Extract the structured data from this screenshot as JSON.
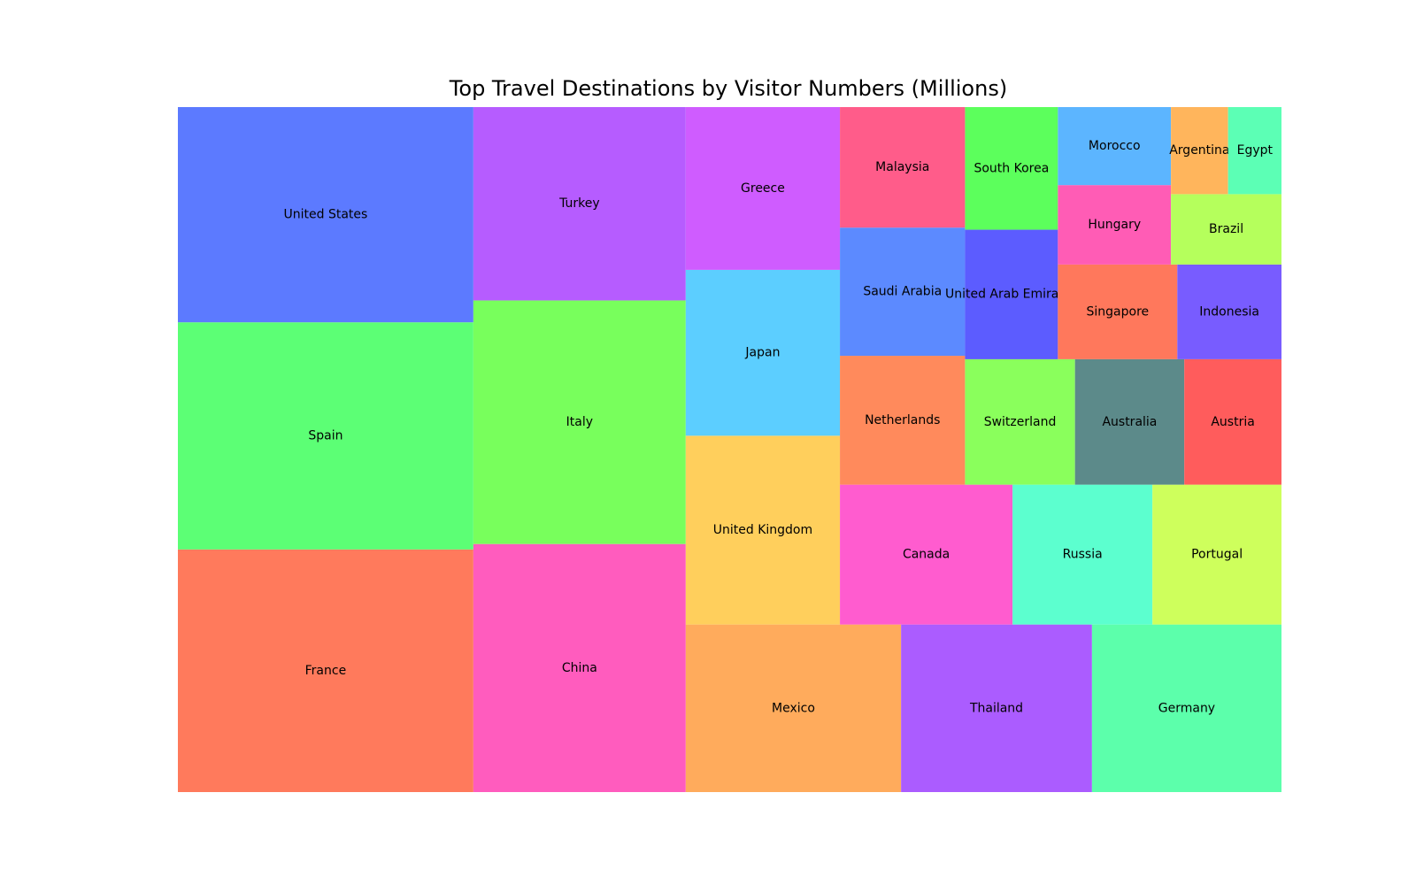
{
  "chart_data": {
    "type": "treemap",
    "title": "Top Travel Destinations by Visitor Numbers (Millions)",
    "xlabel": "",
    "ylabel": "",
    "grid": false,
    "legend": "none",
    "items": [
      {
        "label": "France",
        "value": 89.4,
        "color": "#ff7a5c"
      },
      {
        "label": "Spain",
        "value": 83.7,
        "color": "#5cff75"
      },
      {
        "label": "United States",
        "value": 79.3,
        "color": "#5c7aff"
      },
      {
        "label": "China",
        "value": 65.7,
        "color": "#ff5cbe"
      },
      {
        "label": "Italy",
        "value": 64.5,
        "color": "#78ff5c"
      },
      {
        "label": "Turkey",
        "value": 51.2,
        "color": "#b65cff"
      },
      {
        "label": "Mexico",
        "value": 45.0,
        "color": "#ffab5c"
      },
      {
        "label": "Thailand",
        "value": 39.9,
        "color": "#ab5cff"
      },
      {
        "label": "Germany",
        "value": 39.6,
        "color": "#5cffab"
      },
      {
        "label": "United Kingdom",
        "value": 36.3,
        "color": "#ffcf5c"
      },
      {
        "label": "Japan",
        "value": 31.9,
        "color": "#5cceff"
      },
      {
        "label": "Greece",
        "value": 31.3,
        "color": "#cf5cff"
      },
      {
        "label": "Canada",
        "value": 30.1,
        "color": "#ff5ccf"
      },
      {
        "label": "Russia",
        "value": 24.4,
        "color": "#5cffcf"
      },
      {
        "label": "Portugal",
        "value": 22.5,
        "color": "#ceff5c"
      },
      {
        "label": "Netherlands",
        "value": 20.1,
        "color": "#ff8a5c"
      },
      {
        "label": "Saudi Arabia",
        "value": 20.0,
        "color": "#5c8aff"
      },
      {
        "label": "Malaysia",
        "value": 18.8,
        "color": "#ff5c8a"
      },
      {
        "label": "Switzerland",
        "value": 17.2,
        "color": "#8aff5c"
      },
      {
        "label": "Australia",
        "value": 17.1,
        "color": "#5c8a8a"
      },
      {
        "label": "Austria",
        "value": 15.2,
        "color": "#ff5c5c"
      },
      {
        "label": "United Arab Emirates",
        "value": 15.0,
        "color": "#5c5cff"
      },
      {
        "label": "South Korea",
        "value": 14.2,
        "color": "#5cff5c"
      },
      {
        "label": "Singapore",
        "value": 14.1,
        "color": "#ff785c"
      },
      {
        "label": "Indonesia",
        "value": 12.3,
        "color": "#785cff"
      },
      {
        "label": "Hungary",
        "value": 11.2,
        "color": "#ff5cb5"
      },
      {
        "label": "Morocco",
        "value": 11.0,
        "color": "#5cb5ff"
      },
      {
        "label": "Brazil",
        "value": 9.7,
        "color": "#b5ff5c"
      },
      {
        "label": "Argentina",
        "value": 6.2,
        "color": "#ffb55c"
      },
      {
        "label": "Egypt",
        "value": 5.8,
        "color": "#5cffb5"
      }
    ]
  }
}
